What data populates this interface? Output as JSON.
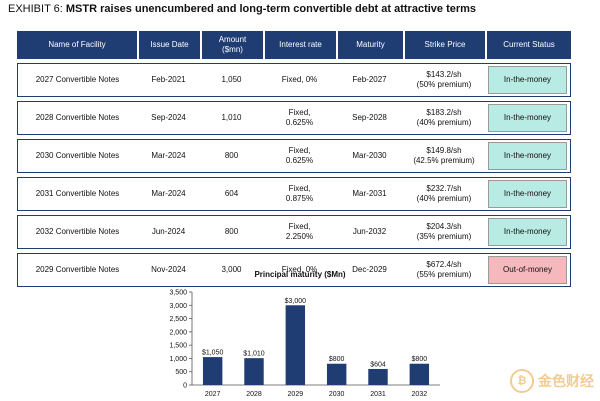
{
  "exhibit": {
    "label": "EXHIBIT 6:",
    "headline": "MSTR raises unencumbered and long-term convertible debt at attractive terms"
  },
  "table": {
    "headers": [
      "Name of Facility",
      "Issue Date",
      "Amount ($mn)",
      "Interest rate",
      "Maturity",
      "Strike Price",
      "Current Status"
    ],
    "rows": [
      {
        "name": "2027 Convertible Notes",
        "issue": "Feb-2021",
        "amount": "1,050",
        "rate": "Fixed, 0%",
        "maturity": "Feb-2027",
        "strike": "$143.2/sh",
        "premium": "(50% premium)",
        "status": "In-the-money",
        "status_color": "#b7ebe3"
      },
      {
        "name": "2028 Convertible Notes",
        "issue": "Sep-2024",
        "amount": "1,010",
        "rate": "Fixed, 0.625%",
        "maturity": "Sep-2028",
        "strike": "$183.2/sh",
        "premium": "(40% premium)",
        "status": "In-the-money",
        "status_color": "#b7ebe3"
      },
      {
        "name": "2030 Convertible Notes",
        "issue": "Mar-2024",
        "amount": "800",
        "rate": "Fixed, 0.625%",
        "maturity": "Mar-2030",
        "strike": "$149.8/sh",
        "premium": "(42.5% premium)",
        "status": "In-the-money",
        "status_color": "#b7ebe3"
      },
      {
        "name": "2031 Convertible Notes",
        "issue": "Mar-2024",
        "amount": "604",
        "rate": "Fixed, 0.875%",
        "maturity": "Mar-2031",
        "strike": "$232.7/sh",
        "premium": "(40% premium)",
        "status": "In-the-money",
        "status_color": "#b7ebe3"
      },
      {
        "name": "2032 Convertible Notes",
        "issue": "Jun-2024",
        "amount": "800",
        "rate": "Fixed, 2.250%",
        "maturity": "Jun-2032",
        "strike": "$204.3/sh",
        "premium": "(35% premium)",
        "status": "In-the-money",
        "status_color": "#b7ebe3"
      },
      {
        "name": "2029 Convertible Notes",
        "issue": "Nov-2024",
        "amount": "3,000",
        "rate": "Fixed, 0%",
        "maturity": "Dec-2029",
        "strike": "$672.4/sh",
        "premium": "(55% premium)",
        "status": "Out-of-money",
        "status_color": "#f5b8bd"
      }
    ]
  },
  "chart_data": {
    "type": "bar",
    "title": "Principal maturity ($Mn)",
    "categories": [
      "2027",
      "2028",
      "2029",
      "2030",
      "2031",
      "2032"
    ],
    "values": [
      1050,
      1010,
      3000,
      800,
      604,
      800
    ],
    "data_labels": [
      "$1,050",
      "$1,010",
      "$3,000",
      "$800",
      "$604",
      "$800"
    ],
    "yticks": [
      0,
      500,
      1000,
      1500,
      2000,
      2500,
      3000,
      3500
    ],
    "ytick_labels": [
      "0",
      "500",
      "1,000",
      "1,500",
      "2,000",
      "2,500",
      "3,000",
      "3,500"
    ],
    "ylim": [
      0,
      3500
    ],
    "xlabel": "",
    "ylabel": "",
    "bar_color": "#1f3d73",
    "grid": false
  },
  "watermark": {
    "text": "金色财经",
    "icon": "coin-icon",
    "color": "#e8a33a"
  }
}
